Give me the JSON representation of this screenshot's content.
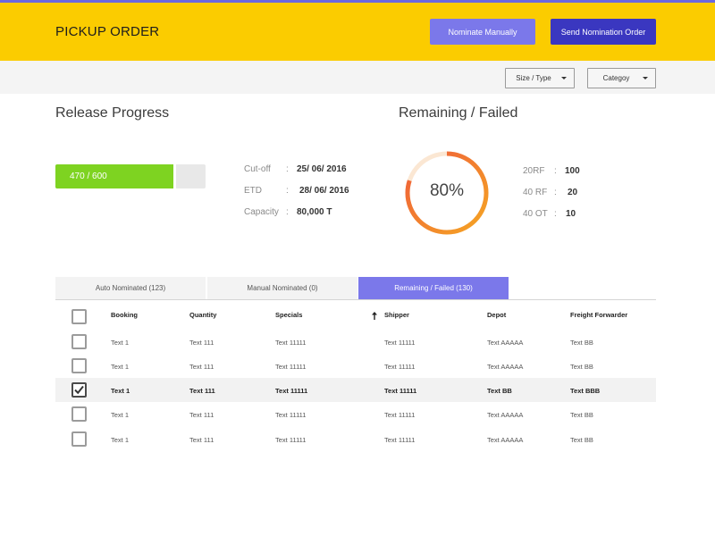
{
  "header": {
    "title": "PICKUP ORDER",
    "buttons": {
      "nominate_manually": "Nominate Manually",
      "send_nomination_order": "Send Nomination Order"
    }
  },
  "filters": {
    "size_type": "Size / Type",
    "category": "Categoy"
  },
  "release_progress": {
    "title": "Release Progress",
    "label": "470 / 600",
    "value": 470,
    "max": 600,
    "details": [
      {
        "label": "Cut-off",
        "value": "25/ 06/ 2016"
      },
      {
        "label": "ETD",
        "value": "28/ 06/ 2016"
      },
      {
        "label": "Capacity",
        "value": "80,000 T"
      }
    ]
  },
  "remaining": {
    "title": "Remaining / Failed",
    "percent_label": "80%",
    "percent": 80,
    "items": [
      {
        "label": "20RF",
        "value": "100"
      },
      {
        "label": "40 RF",
        "value": "20"
      },
      {
        "label": "40 OT",
        "value": "10"
      }
    ]
  },
  "tabs": [
    {
      "label": "Auto Nominated (123)",
      "active": false
    },
    {
      "label": "Manual Nominated (0)",
      "active": false
    },
    {
      "label": "Remaining / Failed (130)",
      "active": true
    }
  ],
  "table": {
    "columns": [
      "Booking",
      "Quantity",
      "Specials",
      "Shipper",
      "Depot",
      "Freight Forwarder"
    ],
    "rows": [
      {
        "checked": false,
        "cells": [
          "Text 1",
          "Text 111",
          "Text 11111",
          "Text 11111",
          "Text AAAAA",
          "Text BB"
        ]
      },
      {
        "checked": false,
        "cells": [
          "Text 1",
          "Text 111",
          "Text 11111",
          "Text 11111",
          "Text AAAAA",
          "Text BB"
        ]
      },
      {
        "checked": true,
        "cells": [
          "Text 1",
          "Text 111",
          "Text 11111",
          "Text 11111",
          "Text BB",
          "Text BBB"
        ]
      },
      {
        "checked": false,
        "cells": [
          "Text 1",
          "Text 111",
          "Text 11111",
          "Text 11111",
          "Text AAAAA",
          "Text BB"
        ]
      },
      {
        "checked": false,
        "cells": [
          "Text 1",
          "Text 111",
          "Text 11111",
          "Text 11111",
          "Text AAAAA",
          "Text BB"
        ]
      }
    ]
  },
  "colors": {
    "header_bg": "#fbcc00",
    "accent": "#7b78ea",
    "primary_button": "#3a37c0",
    "progress_fill": "#7ed321",
    "ring_start": "#f5a623",
    "ring_end": "#ef5b3b"
  }
}
